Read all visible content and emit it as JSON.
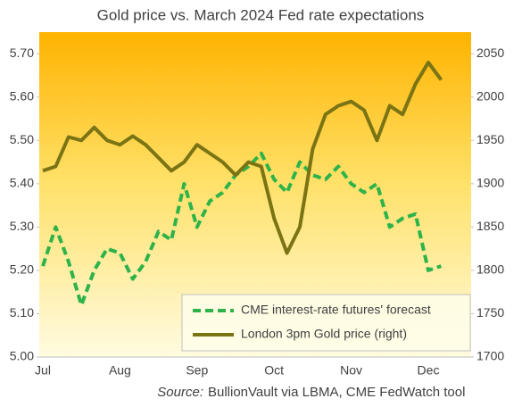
{
  "chart_data": {
    "type": "line",
    "title": "Gold price vs. March 2024 Fed rate expectations",
    "source": {
      "label": "Source:",
      "text": "BullionVault  via LBMA, CME FedWatch tool"
    },
    "categories": [
      "Jul",
      null,
      null,
      null,
      null,
      null,
      "Aug",
      null,
      null,
      null,
      null,
      null,
      "Sep",
      null,
      null,
      null,
      null,
      null,
      "Oct",
      null,
      null,
      null,
      null,
      null,
      "Nov",
      null,
      null,
      null,
      null,
      null,
      "Dec",
      null
    ],
    "series": [
      {
        "name": "CME interest-rate futures' forecast",
        "color": "#2db34a",
        "dashed": true,
        "axis": "y",
        "values": [
          5.21,
          5.3,
          5.22,
          5.12,
          5.2,
          5.25,
          5.24,
          5.18,
          5.22,
          5.29,
          5.27,
          5.4,
          5.3,
          5.36,
          5.38,
          5.42,
          5.44,
          5.47,
          5.41,
          5.38,
          5.45,
          5.42,
          5.41,
          5.44,
          5.4,
          5.38,
          5.4,
          5.3,
          5.32,
          5.33,
          5.2,
          5.21
        ]
      },
      {
        "name": "London 3pm Gold price (right)",
        "color": "#7a7414",
        "dashed": false,
        "axis": "y2",
        "values": [
          1915,
          1920,
          1954,
          1950,
          1965,
          1950,
          1945,
          1955,
          1945,
          1930,
          1915,
          1925,
          1945,
          1935,
          1925,
          1910,
          1925,
          1920,
          1860,
          1820,
          1850,
          1940,
          1980,
          1990,
          1995,
          1985,
          1950,
          1990,
          1980,
          2015,
          2040,
          2020
        ]
      }
    ],
    "ylim": [
      5.0,
      5.75
    ],
    "yticks": [
      {
        "value": 5.0,
        "label": "5.00"
      },
      {
        "value": 5.1,
        "label": "5.10"
      },
      {
        "value": 5.2,
        "label": "5.20"
      },
      {
        "value": 5.3,
        "label": "5.30"
      },
      {
        "value": 5.4,
        "label": "5.40"
      },
      {
        "value": 5.5,
        "label": "5.50"
      },
      {
        "value": 5.6,
        "label": "5.60"
      },
      {
        "value": 5.7,
        "label": "5.70"
      }
    ],
    "y2lim": [
      1700,
      2075
    ],
    "y2ticks": [
      1700,
      1750,
      1800,
      1850,
      1900,
      1950,
      2000,
      2050
    ],
    "legend": "lower right",
    "grid": false
  }
}
